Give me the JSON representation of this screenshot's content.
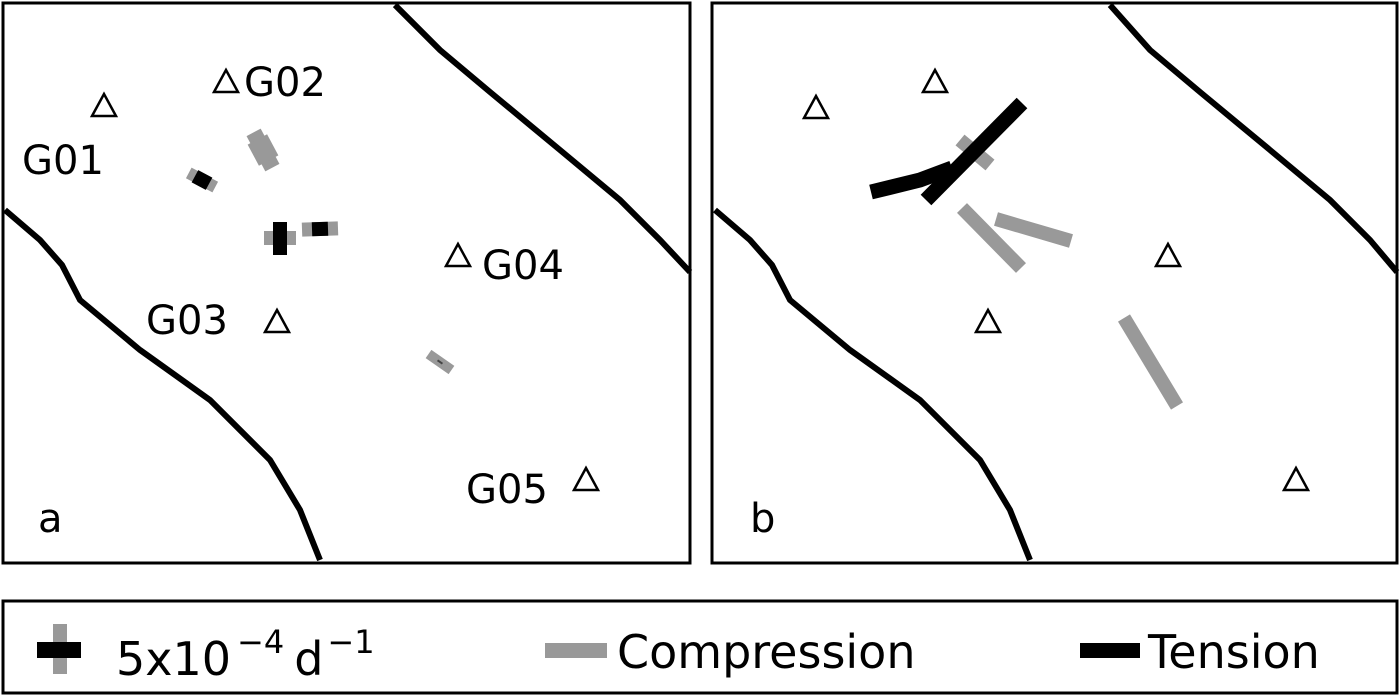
{
  "panels": [
    {
      "label": "a",
      "stations": [
        "G01",
        "G02",
        "G03",
        "G04",
        "G05"
      ]
    },
    {
      "label": "b"
    }
  ],
  "legend": {
    "scale_base": "5x10",
    "scale_exp": "−4",
    "scale_unit": "d",
    "scale_unit_exp": "−1",
    "compression": "Compression",
    "tension": "Tension"
  },
  "colors": {
    "compression": "#999999",
    "tension": "#000000",
    "boundary": "#000000"
  }
}
